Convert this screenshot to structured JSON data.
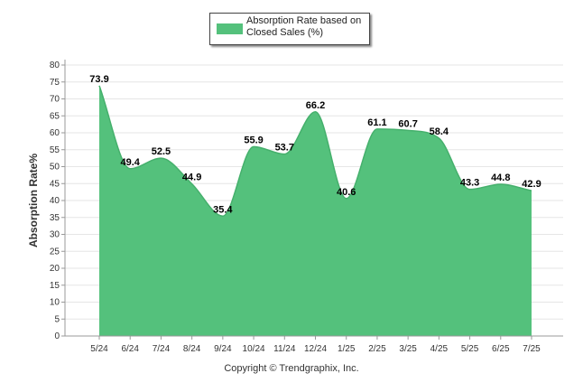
{
  "legend": {
    "label": "Absorption Rate based on Closed Sales (%)",
    "color": "#54c17c"
  },
  "copyright": "Copyright © Trendgraphix, Inc.",
  "chart_data": {
    "type": "area",
    "categories": [
      "5/24",
      "6/24",
      "7/24",
      "8/24",
      "9/24",
      "10/24",
      "11/24",
      "12/24",
      "1/25",
      "2/25",
      "3/25",
      "4/25",
      "5/25",
      "6/25",
      "7/25"
    ],
    "series": [
      {
        "name": "Absorption Rate based on Closed Sales (%)",
        "values": [
          73.9,
          49.4,
          52.5,
          44.9,
          35.4,
          55.9,
          53.7,
          66.2,
          40.6,
          61.1,
          60.7,
          58.4,
          43.3,
          44.8,
          42.9
        ],
        "color": "#54c17c"
      }
    ],
    "ylabel": "Absorption Rate%",
    "xlabel": "",
    "ylim": [
      0,
      80
    ],
    "yticks": [
      0,
      5,
      10,
      15,
      20,
      25,
      30,
      35,
      40,
      45,
      50,
      55,
      60,
      65,
      70,
      75,
      80
    ],
    "grid": true,
    "legend_position": "top-center"
  }
}
